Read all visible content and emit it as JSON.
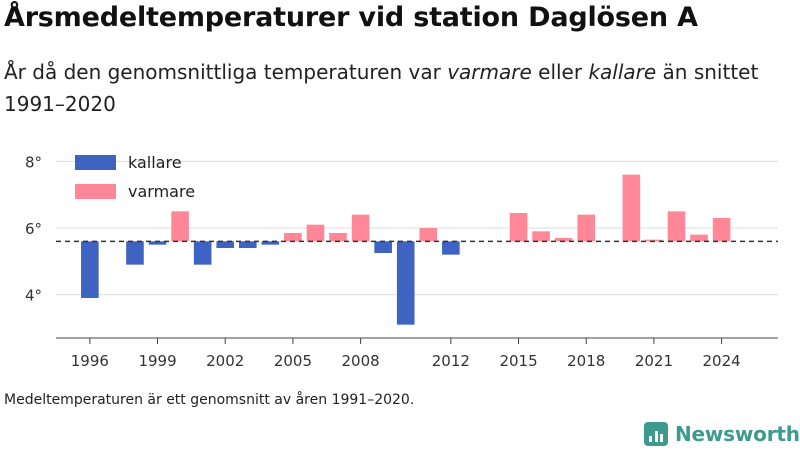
{
  "title": "Årsmedeltemperaturer vid station Daglösen A",
  "subtitle": {
    "part1": "År då den genomsnittliga temperaturen var ",
    "warm_word": "varmare",
    "part2": " eller ",
    "cold_word": "kallare",
    "part3": " än snittet 1991–2020"
  },
  "footnote": "Medeltemperaturen är ett genomsnitt av åren 1991–2020.",
  "logo": {
    "text": "Newsworthy",
    "icon": "newsworthy-logo-icon"
  },
  "colors": {
    "kallare": "#3f63c2",
    "varmare": "#ff8797",
    "reference": "#333333",
    "grid": "#dddddd"
  },
  "chart_data": {
    "type": "bar",
    "baseline": 5.6,
    "reference_line": "dashed",
    "ylim": [
      2.7,
      8.4
    ],
    "y_ticks": [
      4,
      6,
      8
    ],
    "y_tick_labels": [
      "4°",
      "6°",
      "8°"
    ],
    "x_ticks": [
      1996,
      1999,
      2002,
      2005,
      2008,
      2012,
      2015,
      2018,
      2021,
      2024
    ],
    "x_tick_labels": [
      "1996",
      "1999",
      "2002",
      "2005",
      "2008",
      "2012",
      "2015",
      "2018",
      "2021",
      "2024"
    ],
    "xlim": [
      1994.5,
      2026.5
    ],
    "legend": [
      {
        "key": "kallare",
        "label": "kallare"
      },
      {
        "key": "varmare",
        "label": "varmare"
      }
    ],
    "legend_position": "top-left",
    "bars": [
      {
        "year": 1996,
        "value": 3.9,
        "category": "kallare"
      },
      {
        "year": 1998,
        "value": 4.9,
        "category": "kallare"
      },
      {
        "year": 1999,
        "value": 5.5,
        "category": "kallare"
      },
      {
        "year": 2000,
        "value": 6.5,
        "category": "varmare"
      },
      {
        "year": 2001,
        "value": 4.9,
        "category": "kallare"
      },
      {
        "year": 2002,
        "value": 5.4,
        "category": "kallare"
      },
      {
        "year": 2003,
        "value": 5.4,
        "category": "kallare"
      },
      {
        "year": 2004,
        "value": 5.5,
        "category": "kallare"
      },
      {
        "year": 2005,
        "value": 5.85,
        "category": "varmare"
      },
      {
        "year": 2006,
        "value": 6.1,
        "category": "varmare"
      },
      {
        "year": 2007,
        "value": 5.85,
        "category": "varmare"
      },
      {
        "year": 2008,
        "value": 6.4,
        "category": "varmare"
      },
      {
        "year": 2009,
        "value": 5.25,
        "category": "kallare"
      },
      {
        "year": 2010,
        "value": 3.1,
        "category": "kallare"
      },
      {
        "year": 2011,
        "value": 6.0,
        "category": "varmare"
      },
      {
        "year": 2012,
        "value": 5.2,
        "category": "kallare"
      },
      {
        "year": 2015,
        "value": 6.45,
        "category": "varmare"
      },
      {
        "year": 2016,
        "value": 5.9,
        "category": "varmare"
      },
      {
        "year": 2017,
        "value": 5.7,
        "category": "varmare"
      },
      {
        "year": 2018,
        "value": 6.4,
        "category": "varmare"
      },
      {
        "year": 2020,
        "value": 7.6,
        "category": "varmare"
      },
      {
        "year": 2021,
        "value": 5.65,
        "category": "varmare"
      },
      {
        "year": 2022,
        "value": 6.5,
        "category": "varmare"
      },
      {
        "year": 2023,
        "value": 5.8,
        "category": "varmare"
      },
      {
        "year": 2024,
        "value": 6.3,
        "category": "varmare"
      }
    ]
  }
}
